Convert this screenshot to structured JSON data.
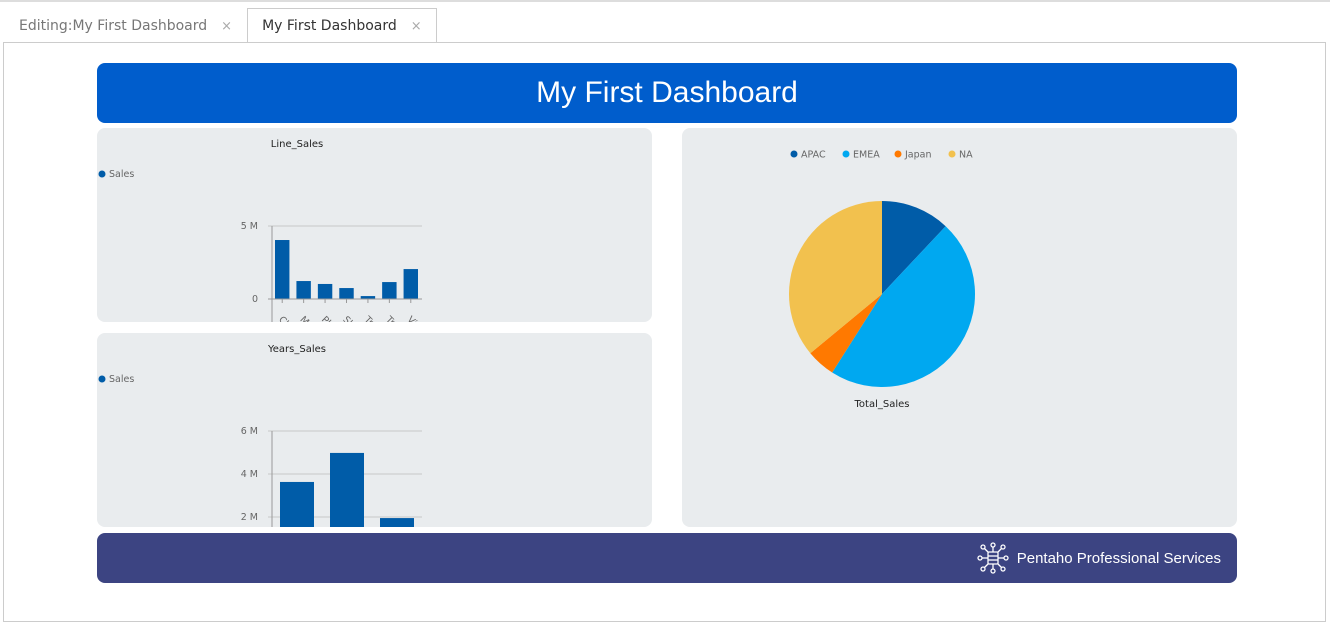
{
  "tabs": [
    {
      "label": "Editing:My First Dashboard",
      "close": "×"
    },
    {
      "label": "My First Dashboard",
      "close": "×",
      "active": true
    }
  ],
  "header": {
    "title": "My First Dashboard"
  },
  "footer": {
    "text": "Pentaho Professional Services",
    "icon": "network-hub-icon"
  },
  "colors": {
    "header": "#005dcc",
    "footer": "#3c4482",
    "bar": "#005ca8",
    "apac": "#005ca8",
    "emea": "#00a8f0",
    "japan": "#ff7900",
    "na": "#f2c14e"
  },
  "chart_data": [
    {
      "type": "bar",
      "title": "Line_Sales",
      "legend": [
        "Sales"
      ],
      "categories": [
        "Class",
        "Moto",
        "Plan",
        "Ship",
        "Train",
        "Truc",
        "Vinta"
      ],
      "values": [
        4040000,
        1230000,
        1030000,
        750000,
        200000,
        1160000,
        2050000
      ],
      "yticks": [
        {
          "v": 0,
          "label": "0"
        },
        {
          "v": 5000000,
          "label": "5 M"
        }
      ],
      "ylim": [
        0,
        5000000
      ]
    },
    {
      "type": "bar",
      "title": "Years_Sales",
      "legend": [
        "Sales"
      ],
      "categories": [
        "",
        "",
        ""
      ],
      "values": [
        3630000,
        4980000,
        1950000
      ],
      "yticks": [
        {
          "v": 2000000,
          "label": "2 M"
        },
        {
          "v": 4000000,
          "label": "4 M"
        },
        {
          "v": 6000000,
          "label": "6 M"
        }
      ],
      "ylim": [
        0,
        6000000
      ]
    },
    {
      "type": "pie",
      "title": "Total_Sales",
      "legend": [
        "APAC",
        "EMEA",
        "Japan",
        "NA"
      ],
      "values": [
        12,
        47,
        5,
        36
      ]
    }
  ]
}
